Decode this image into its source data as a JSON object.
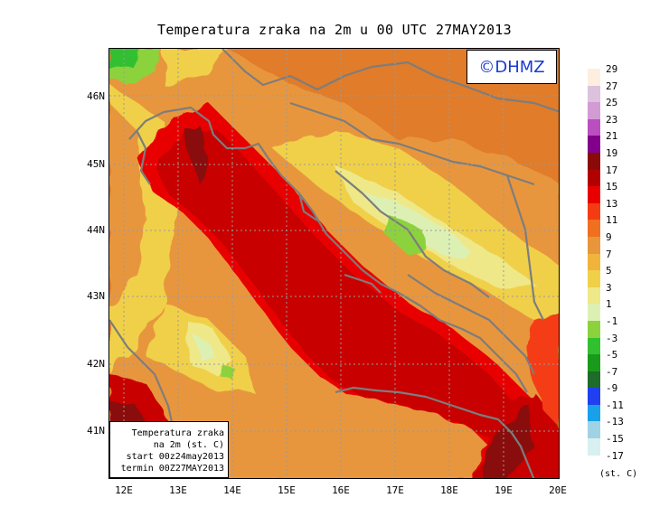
{
  "title": "Temperatura zraka na 2m u 00 UTC 27MAY2013",
  "watermark": "©DHMZ",
  "info_box": [
    "Temperatura zraka",
    "na 2m (st. C)",
    "start 00z24may2013",
    "termin 00Z27MAY2013"
  ],
  "lat_labels": [
    "46N",
    "45N",
    "44N",
    "43N",
    "42N",
    "41N"
  ],
  "lon_labels": [
    "12E",
    "13E",
    "14E",
    "15E",
    "16E",
    "17E",
    "18E",
    "19E",
    "20E"
  ],
  "legend": {
    "labels": [
      "29",
      "27",
      "25",
      "23",
      "21",
      "19",
      "17",
      "15",
      "13",
      "11",
      "9",
      "7",
      "5",
      "3",
      "1",
      "-1",
      "-3",
      "-5",
      "-7",
      "-9",
      "-11",
      "-13",
      "-15",
      "-17"
    ],
    "colors": [
      "#fdeee0",
      "#dcc2dc",
      "#d39bd3",
      "#b94fc0",
      "#82008a",
      "#8a0a0a",
      "#b20000",
      "#e80000",
      "#f43c14",
      "#f07020",
      "#e8963c",
      "#f0b43c",
      "#f0d048",
      "#eee888",
      "#ddf0b4",
      "#8cd23c",
      "#30c030",
      "#1a9a1a",
      "#1d6c2a",
      "#2040f0",
      "#18a0e8",
      "#a0d2e6",
      "#d8f0f0",
      "#ffffff"
    ],
    "units": "(st. C)"
  }
}
